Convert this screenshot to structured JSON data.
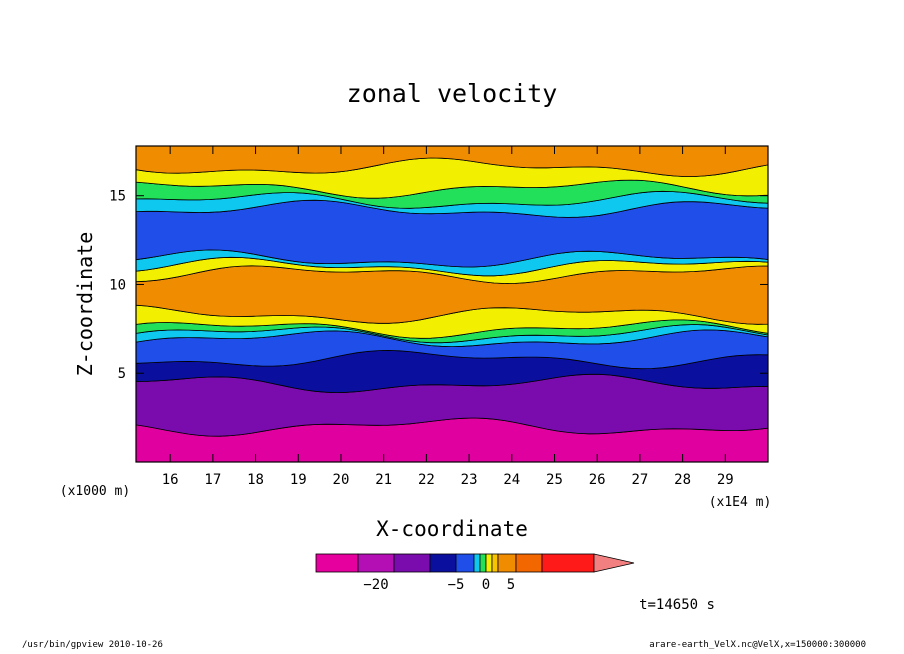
{
  "chart_data": {
    "type": "heatmap",
    "title": "zonal velocity",
    "xlabel": "X-coordinate",
    "ylabel": "Z-coordinate",
    "x_scale_note": "(x1E4 m)",
    "y_scale_note": "(x1000 m)",
    "xlim": [
      15.2,
      30.0
    ],
    "ylim": [
      0,
      17.8
    ],
    "xticks": [
      "16",
      "17",
      "18",
      "19",
      "20",
      "21",
      "22",
      "23",
      "24",
      "25",
      "26",
      "27",
      "28",
      "29"
    ],
    "yticks": [
      "5",
      "10",
      "15"
    ],
    "time_label": "t=14650 s",
    "colorbar": {
      "colors": [
        "#e6009e",
        "#b40fb4",
        "#7a0cae",
        "#0a0f9e",
        "#1f4ee8",
        "#0fc8f0",
        "#23e05a",
        "#f2f000",
        "#f8c400",
        "#f08c00",
        "#f26700",
        "#ff1a1a",
        "#f28080"
      ],
      "ticks": [
        {
          "value": -20,
          "label": "−20"
        },
        {
          "value": -5,
          "label": "−5"
        },
        {
          "value": 0,
          "label": "0"
        },
        {
          "value": 5,
          "label": "5"
        }
      ]
    },
    "bands": [
      {
        "from": 0.0,
        "to": 2.0,
        "color": "#e000a0"
      },
      {
        "from": 2.0,
        "to": 4.4,
        "color": "#7a0cae"
      },
      {
        "from": 4.4,
        "to": 5.8,
        "color": "#0a0f9e"
      },
      {
        "from": 5.8,
        "to": 6.9,
        "color": "#1f4ee8"
      },
      {
        "from": 6.9,
        "to": 7.2,
        "color": "#0fc8f0"
      },
      {
        "from": 7.2,
        "to": 7.5,
        "color": "#23e05a"
      },
      {
        "from": 7.5,
        "to": 8.3,
        "color": "#f2f000"
      },
      {
        "from": 8.3,
        "to": 10.6,
        "color": "#f08c00"
      },
      {
        "from": 10.6,
        "to": 11.0,
        "color": "#f2f000"
      },
      {
        "from": 11.0,
        "to": 11.4,
        "color": "#0fc8f0"
      },
      {
        "from": 11.4,
        "to": 14.2,
        "color": "#1f4ee8"
      },
      {
        "from": 14.2,
        "to": 14.7,
        "color": "#0fc8f0"
      },
      {
        "from": 14.7,
        "to": 15.4,
        "color": "#23e05a"
      },
      {
        "from": 15.4,
        "to": 16.6,
        "color": "#f2f000"
      },
      {
        "from": 16.6,
        "to": 17.8,
        "color": "#f08c00"
      }
    ]
  },
  "footer": {
    "left": "/usr/bin/gpview  2010-10-26",
    "right": "arare-earth_VelX.nc@VelX,x=150000:300000"
  }
}
